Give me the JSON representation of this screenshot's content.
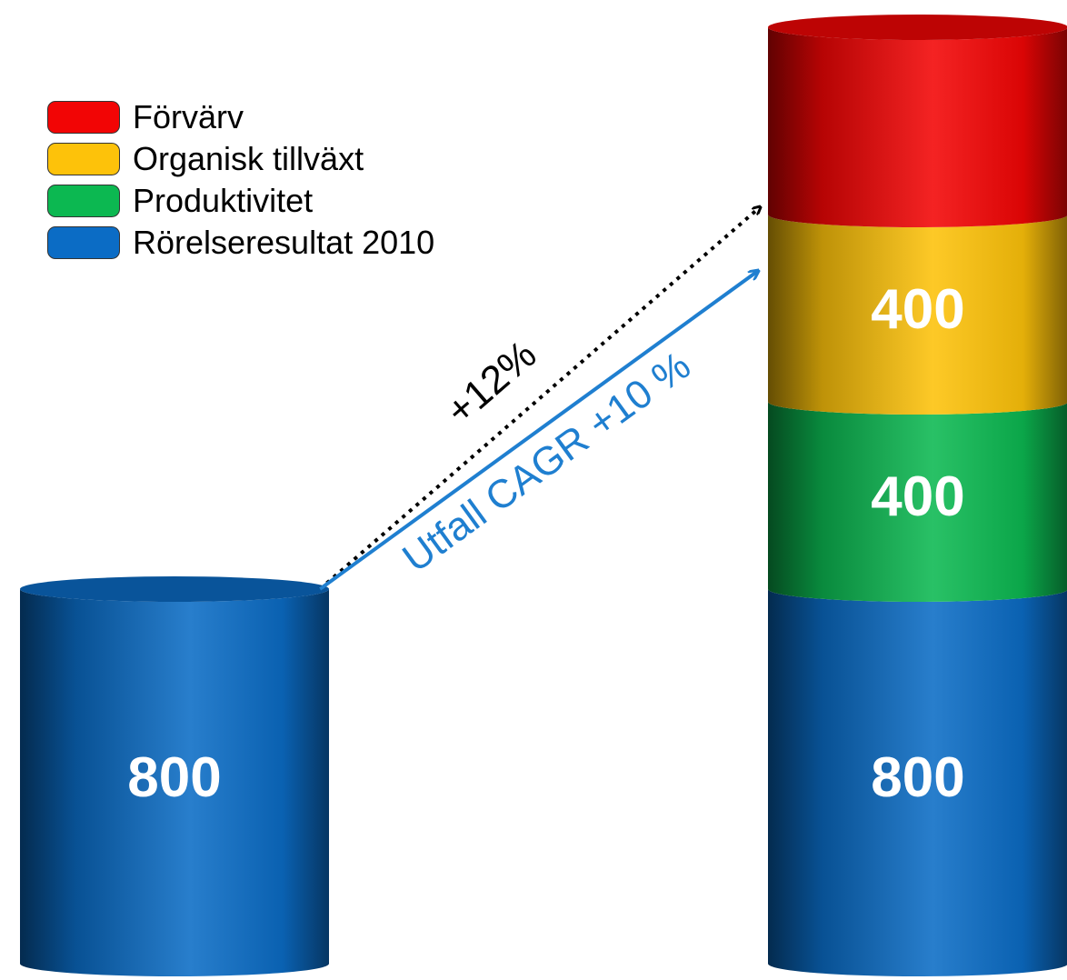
{
  "chart_data": {
    "type": "bar",
    "categories": [
      "",
      ""
    ],
    "series": [
      {
        "name": "Rörelseresultat 2010",
        "values": [
          800,
          800
        ],
        "color": "#0b6cc5"
      },
      {
        "name": "Produktivitet",
        "values": [
          0,
          400
        ],
        "color": "#0cb851"
      },
      {
        "name": "Organisk tillväxt",
        "values": [
          0,
          400
        ],
        "color": "#fdc20a"
      },
      {
        "name": "Förvärv",
        "values": [
          0,
          400
        ],
        "color": "#f20505"
      }
    ],
    "data_labels": [
      {
        "category": 0,
        "series": "Rörelseresultat 2010",
        "text": "800"
      },
      {
        "category": 1,
        "series": "Rörelseresultat 2010",
        "text": "800"
      },
      {
        "category": 1,
        "series": "Produktivitet",
        "text": "400"
      },
      {
        "category": 1,
        "series": "Organisk tillväxt",
        "text": "400"
      }
    ],
    "legend": {
      "position": "top-left",
      "order": [
        "Förvärv",
        "Organisk tillväxt",
        "Produktivitet",
        "Rörelseresultat 2010"
      ]
    },
    "annotations": [
      {
        "text": "+12%",
        "style": "dotted-arrow",
        "color": "#000000"
      },
      {
        "text": "Utfall CAGR +10 %",
        "style": "solid-arrow",
        "color": "#1f7fd0"
      }
    ],
    "bar_style": "3d-cylinder",
    "axes_visible": false,
    "grid": false,
    "ylim": [
      0,
      2000
    ]
  }
}
